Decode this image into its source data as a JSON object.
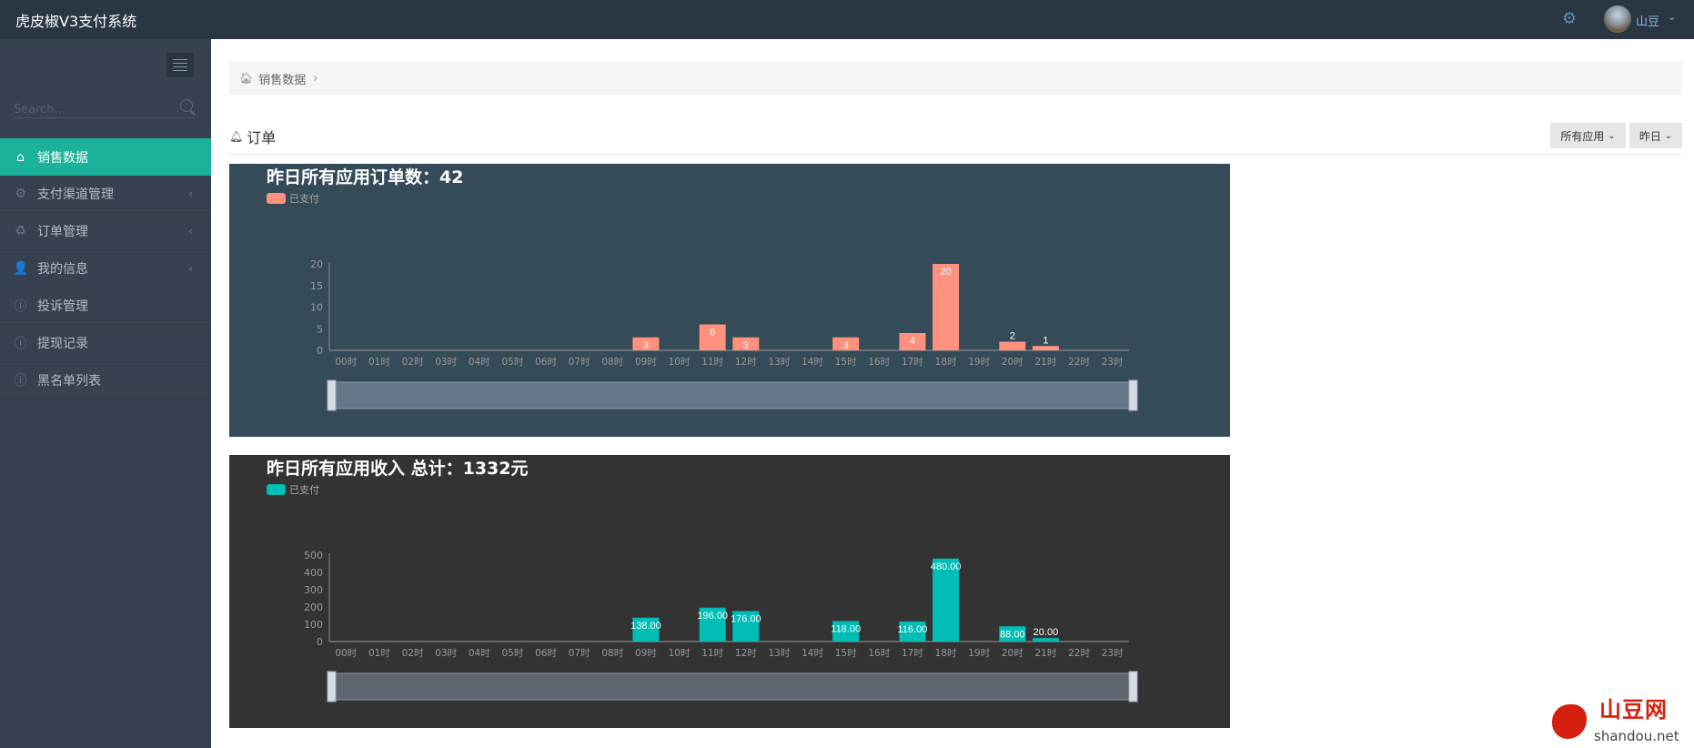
{
  "header": {
    "title": "虎皮椒V3支付系统",
    "user_name": "山豆",
    "icons": {
      "settings": "gear-icon",
      "caret": "chevron-down-icon"
    }
  },
  "sidebar": {
    "search_placeholder": "Search...",
    "items": [
      {
        "label": "销售数据",
        "icon": "⌂",
        "active": true,
        "has_children": false
      },
      {
        "label": "支付渠道管理",
        "icon": "⚙",
        "active": false,
        "has_children": true
      },
      {
        "label": "订单管理",
        "icon": "♻",
        "active": false,
        "has_children": true
      },
      {
        "label": "我的信息",
        "icon": "👤",
        "active": false,
        "has_children": true
      },
      {
        "label": "投诉管理",
        "icon": "ⓘ",
        "active": false,
        "has_children": false
      },
      {
        "label": "提现记录",
        "icon": "ⓘ",
        "active": false,
        "has_children": false
      },
      {
        "label": "黑名单列表",
        "icon": "ⓘ",
        "active": false,
        "has_children": false
      }
    ]
  },
  "breadcrumb": {
    "items": [
      "销售数据"
    ]
  },
  "section": {
    "title": "订单",
    "filter_app": "所有应用",
    "filter_date": "昨日"
  },
  "chart_data": [
    {
      "type": "bar",
      "title": "昨日所有应用订单数：42",
      "legend": "已支付",
      "legend_position": "top-left",
      "categories": [
        "00时",
        "01时",
        "02时",
        "03时",
        "04时",
        "05时",
        "06时",
        "07时",
        "08时",
        "09时",
        "10时",
        "11时",
        "12时",
        "13时",
        "14时",
        "15时",
        "16时",
        "17时",
        "18时",
        "19时",
        "20时",
        "21时",
        "22时",
        "23时"
      ],
      "values": [
        0,
        0,
        0,
        0,
        0,
        0,
        0,
        0,
        0,
        3,
        0,
        6,
        3,
        0,
        0,
        3,
        0,
        4,
        20,
        0,
        2,
        1,
        0,
        0
      ],
      "labels": [
        "",
        "",
        "",
        "",
        "",
        "",
        "",
        "",
        "",
        "3",
        "",
        "6",
        "3",
        "",
        "",
        "3",
        "",
        "4",
        "20",
        "",
        "2",
        "1",
        "",
        ""
      ],
      "ylim": [
        0,
        20
      ],
      "yticks": [
        0,
        5,
        10,
        15,
        20
      ],
      "grid": false,
      "datazoom_slider": true,
      "colors": {
        "background": "#354b57",
        "bar": "#ff917e",
        "slider": "#64788a"
      }
    },
    {
      "type": "bar",
      "title": "昨日所有应用收入 总计：1332元",
      "legend": "已支付",
      "legend_position": "top-left",
      "categories": [
        "00时",
        "01时",
        "02时",
        "03时",
        "04时",
        "05时",
        "06时",
        "07时",
        "08时",
        "09时",
        "10时",
        "11时",
        "12时",
        "13时",
        "14时",
        "15时",
        "16时",
        "17时",
        "18时",
        "19时",
        "20时",
        "21时",
        "22时",
        "23时"
      ],
      "values": [
        0,
        0,
        0,
        0,
        0,
        0,
        0,
        0,
        0,
        138,
        0,
        196,
        176,
        0,
        0,
        118,
        0,
        116,
        480,
        0,
        88,
        20,
        0,
        0
      ],
      "labels": [
        "",
        "",
        "",
        "",
        "",
        "",
        "",
        "",
        "",
        "138.00",
        "",
        "196.00",
        "176.00",
        "",
        "",
        "118.00",
        "",
        "116.00",
        "480.00",
        "",
        "88.00",
        "20.00",
        "",
        ""
      ],
      "ylim": [
        0,
        500
      ],
      "yticks": [
        0,
        100,
        200,
        300,
        400,
        500
      ],
      "grid": false,
      "datazoom_slider": true,
      "colors": {
        "background": "#333333",
        "bar": "#00bdb5",
        "slider": "#5f6670"
      }
    }
  ],
  "watermark": {
    "cn": "山豆网",
    "en": "shandou.net"
  }
}
